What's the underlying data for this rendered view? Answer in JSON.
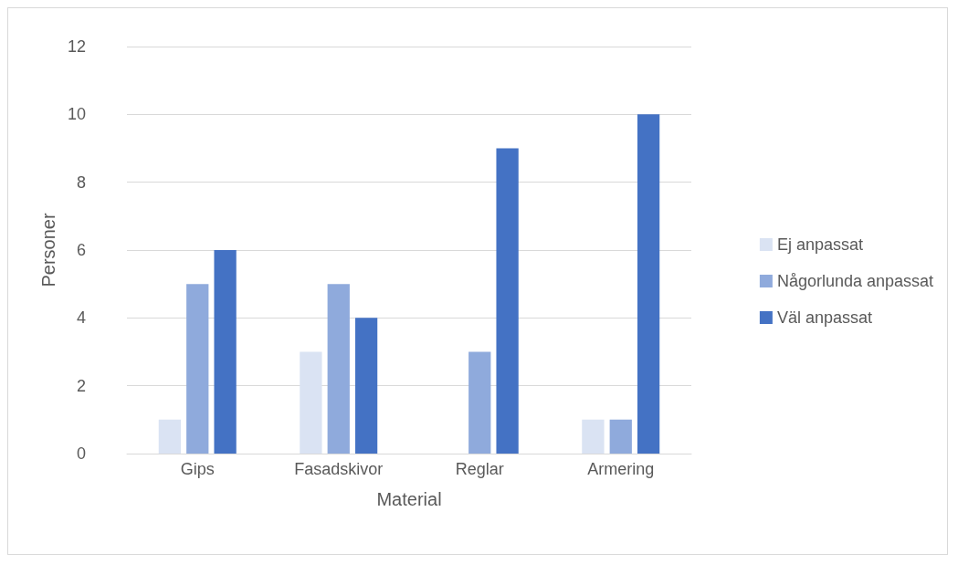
{
  "chart_data": {
    "type": "bar",
    "xlabel": "Material",
    "ylabel": "Personer",
    "categories": [
      "Gips",
      "Fasadskivor",
      "Reglar",
      "Armering"
    ],
    "series": [
      {
        "name": "Ej anpassat",
        "color": "#dae3f3",
        "values": [
          1,
          3,
          0,
          1
        ]
      },
      {
        "name": "Någorlunda anpassat",
        "color": "#8faadc",
        "values": [
          5,
          5,
          3,
          1
        ]
      },
      {
        "name": "Väl anpassat",
        "color": "#4472c4",
        "values": [
          6,
          4,
          9,
          10
        ]
      }
    ],
    "ylim": [
      0,
      12
    ],
    "yticks": [
      0,
      2,
      4,
      6,
      8,
      10,
      12
    ],
    "grid": "y",
    "legend": "right"
  }
}
